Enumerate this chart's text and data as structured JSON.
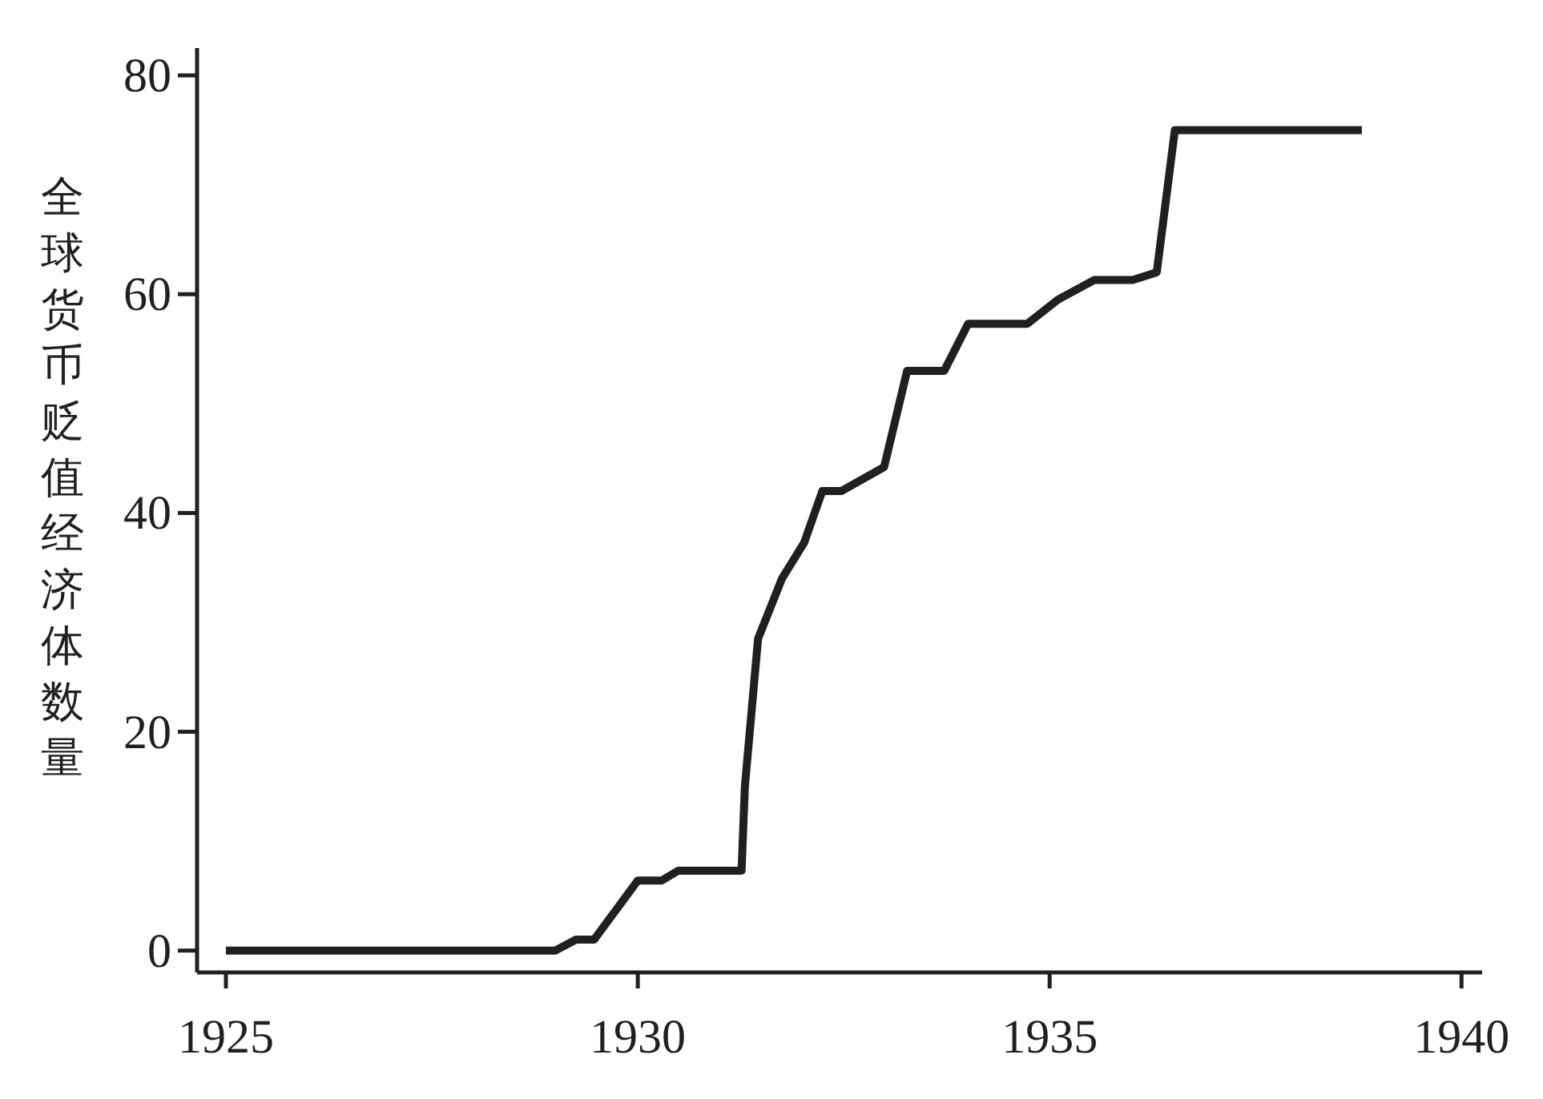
{
  "chart_data": {
    "type": "line",
    "ylabel": "全球货币贬值经济体数量",
    "x": [
      1925,
      1929.0,
      1929.25,
      1929.47,
      1930.0,
      1930.29,
      1930.49,
      1931.26,
      1931.3,
      1931.46,
      1931.75,
      1932.02,
      1932.24,
      1932.47,
      1932.99,
      1933.27,
      1933.72,
      1934.01,
      1934.73,
      1935.1,
      1935.54,
      1936.01,
      1936.3,
      1936.52,
      1938.79
    ],
    "series": [
      {
        "color": "#231f20",
        "values": [
          0,
          0,
          1,
          1,
          6.4,
          6.4,
          7.3,
          7.3,
          15,
          28.5,
          34,
          37.3,
          42,
          42,
          44.2,
          53,
          53,
          57.3,
          57.3,
          59.5,
          61.3,
          61.3,
          62,
          75,
          75
        ]
      }
    ],
    "xlim": [
      1924.65,
      1940.25
    ],
    "ylim": [
      -2,
      82.5
    ],
    "xticks": [
      1925,
      1930,
      1935,
      1940
    ],
    "yticks": [
      0,
      20,
      40,
      60,
      80
    ],
    "grid": false,
    "marker": "none",
    "line_style": "solid"
  }
}
